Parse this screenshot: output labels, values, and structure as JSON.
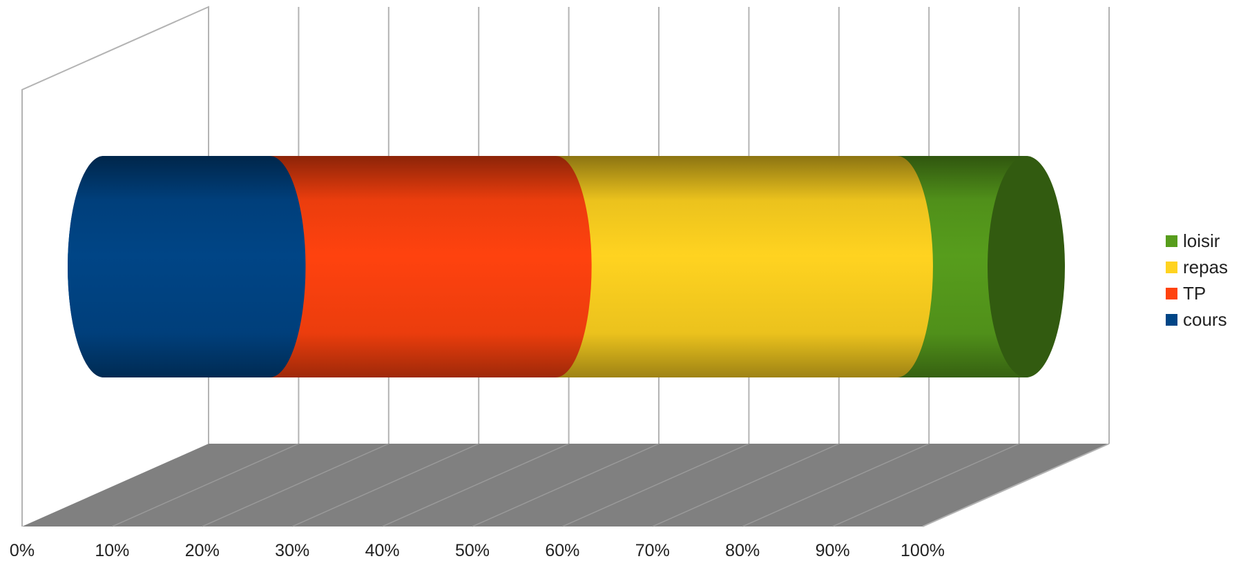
{
  "chart_data": {
    "type": "bar",
    "subtype": "3d-stacked-percent-cylinder-horizontal",
    "orientation": "horizontal",
    "x_tick_labels": [
      "0%",
      "10%",
      "20%",
      "30%",
      "40%",
      "50%",
      "60%",
      "70%",
      "80%",
      "90%",
      "100%"
    ],
    "xlim": [
      0,
      100
    ],
    "grid": true,
    "legend_position": "right",
    "series": [
      {
        "name": "cours",
        "value": 18,
        "color": "#004586"
      },
      {
        "name": "TP",
        "value": 31,
        "color": "#ff420e"
      },
      {
        "name": "repas",
        "value": 37,
        "color": "#ffd320"
      },
      {
        "name": "loisir",
        "value": 14,
        "color": "#579d1c"
      }
    ],
    "legend_order": [
      "loisir",
      "repas",
      "TP",
      "cours"
    ],
    "colors": {
      "floor": "#808080",
      "gridline": "#b3b3b3"
    }
  }
}
